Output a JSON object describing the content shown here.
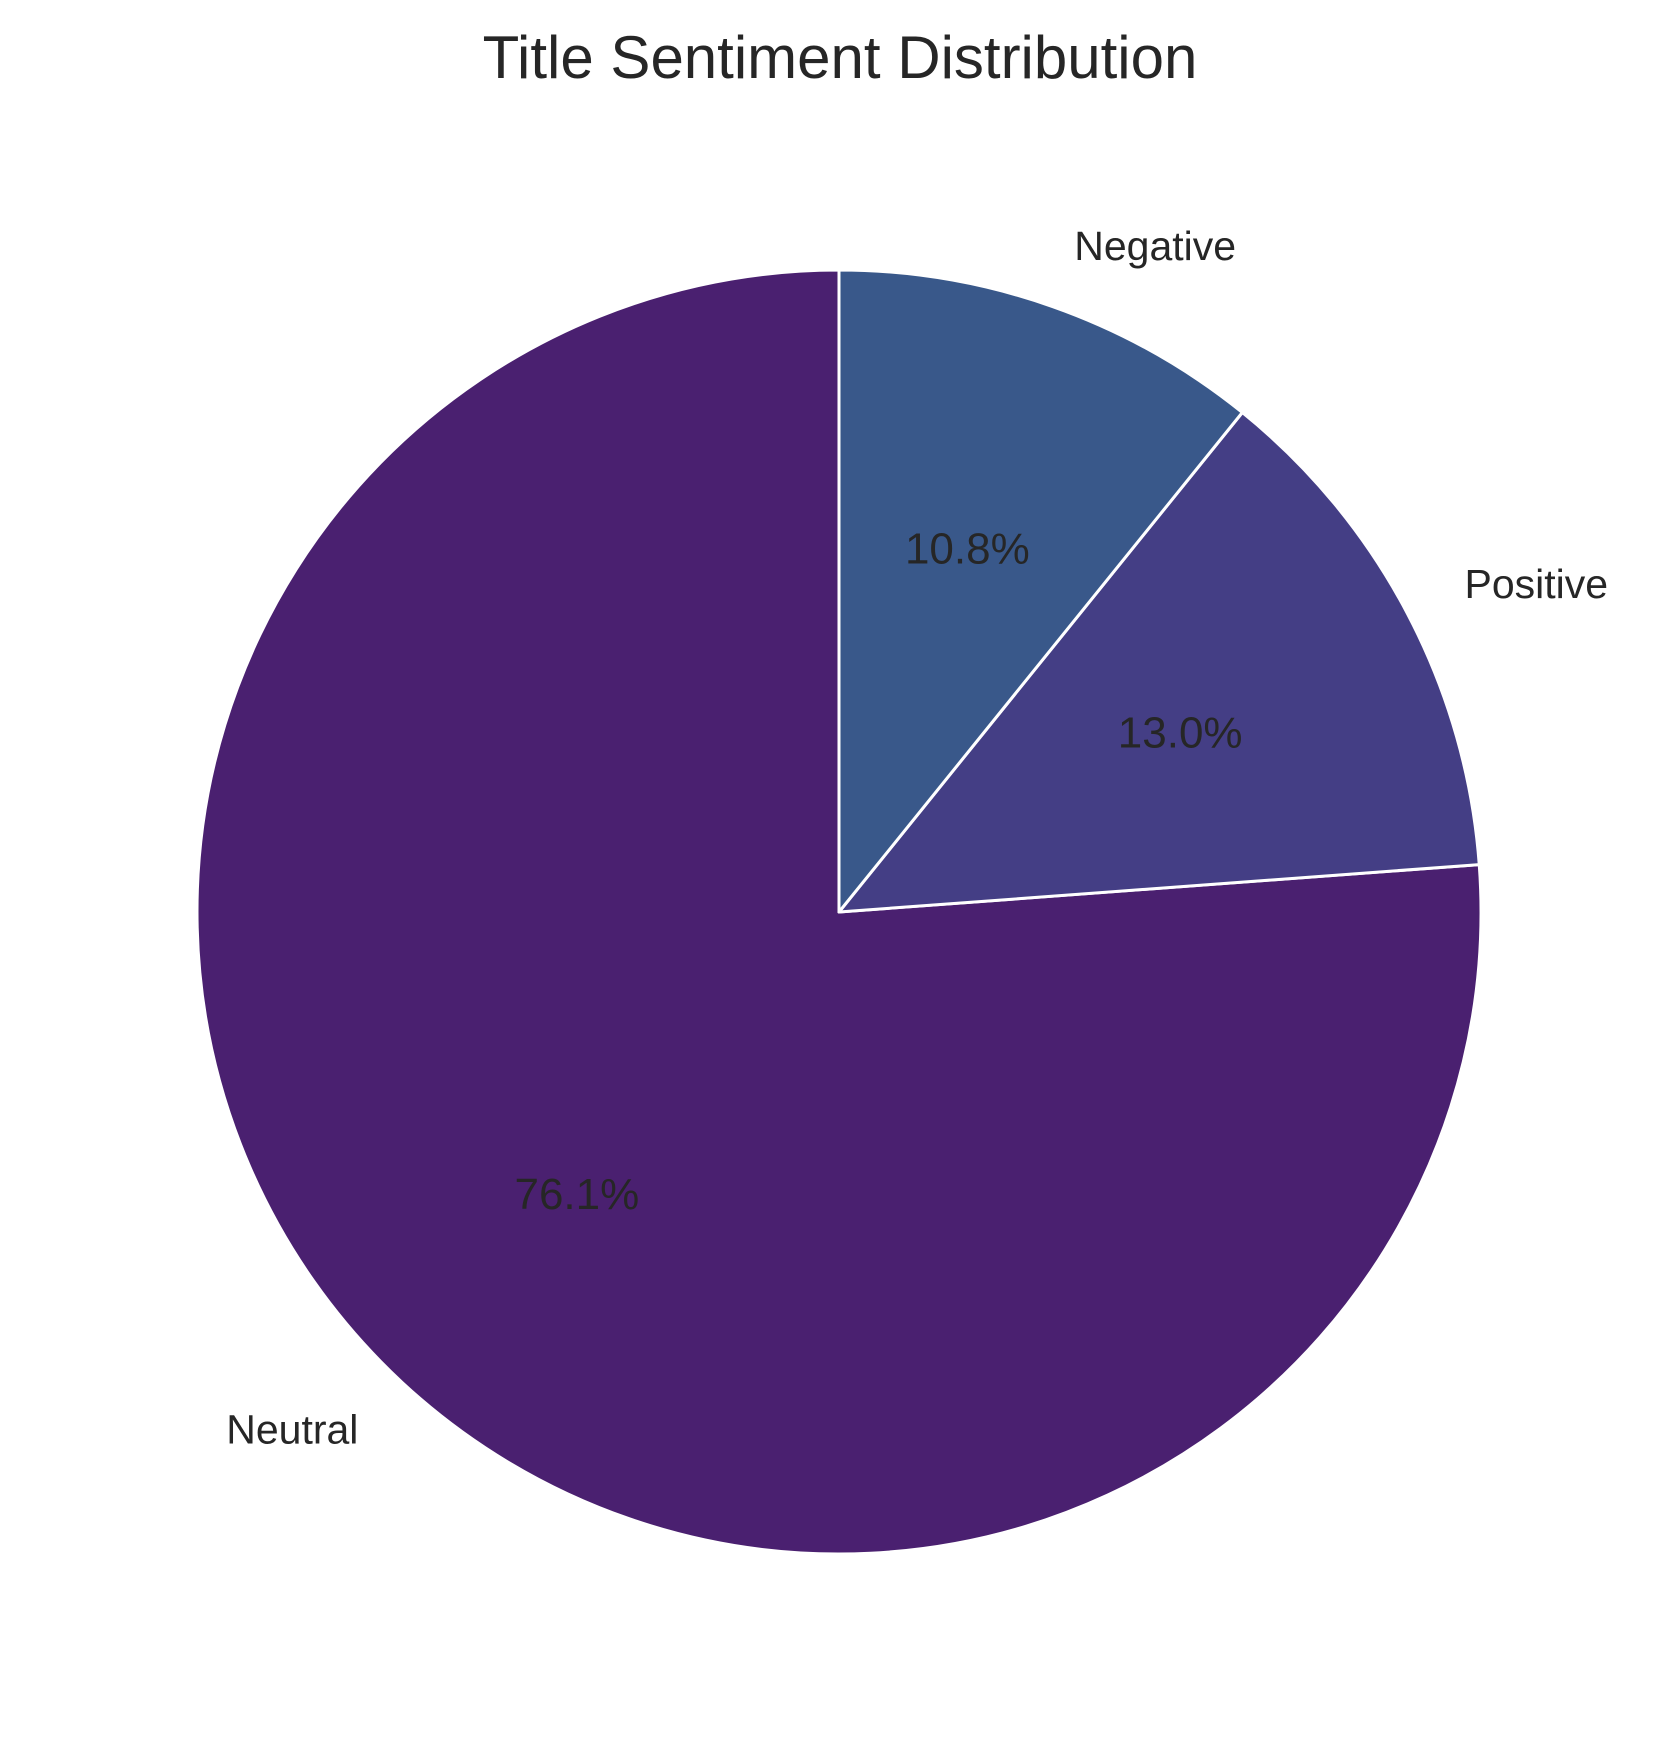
{
  "chart_data": {
    "type": "pie",
    "title": "Title Sentiment Distribution",
    "categories": [
      "Neutral",
      "Positive",
      "Negative"
    ],
    "values": [
      76.1,
      13.0,
      10.8
    ],
    "value_labels": [
      "76.1%",
      "13.0%",
      "10.8%"
    ],
    "colors": [
      "#4a2070",
      "#443e85",
      "#39588a"
    ],
    "start_angle_deg": 90,
    "direction": "counterclockwise",
    "edge_color": "#ffffff",
    "legend": "none"
  }
}
